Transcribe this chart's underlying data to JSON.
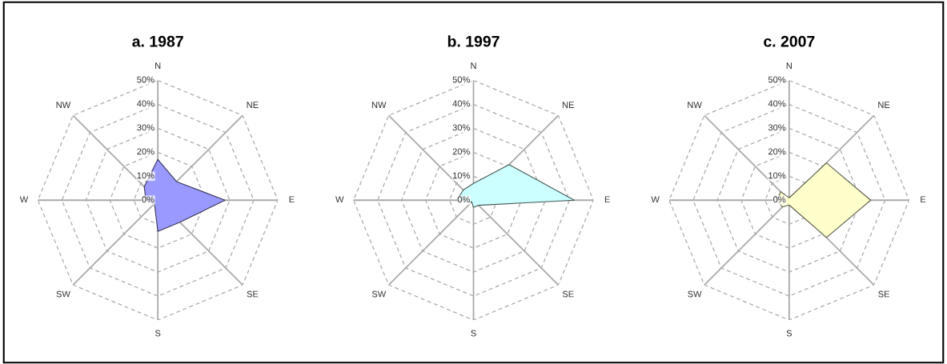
{
  "chart_data": [
    {
      "type": "radar",
      "title": "a. 1987",
      "categories": [
        "N",
        "NE",
        "E",
        "SE",
        "S",
        "SW",
        "W",
        "NW"
      ],
      "ylim": [
        0,
        50
      ],
      "yticks": [
        {
          "value": 0,
          "label": "0%"
        },
        {
          "value": 10,
          "label": "10%"
        },
        {
          "value": 20,
          "label": "20%"
        },
        {
          "value": 30,
          "label": "30%"
        },
        {
          "value": 40,
          "label": "40%"
        },
        {
          "value": 50,
          "label": "50%"
        }
      ],
      "grid": true,
      "series": [
        {
          "color": "#9999ff",
          "values": [
            17,
            11,
            28,
            13,
            13,
            2,
            5,
            8
          ]
        }
      ]
    },
    {
      "type": "radar",
      "title": "b. 1997",
      "categories": [
        "N",
        "NE",
        "E",
        "SE",
        "S",
        "SW",
        "W",
        "NW"
      ],
      "ylim": [
        0,
        50
      ],
      "yticks": [
        {
          "value": 0,
          "label": "0%"
        },
        {
          "value": 10,
          "label": "10%"
        },
        {
          "value": 20,
          "label": "20%"
        },
        {
          "value": 30,
          "label": "30%"
        },
        {
          "value": 40,
          "label": "40%"
        },
        {
          "value": 50,
          "label": "50%"
        }
      ],
      "grid": true,
      "series": [
        {
          "color": "#ccffff",
          "values": [
            7,
            21,
            42,
            3,
            3,
            1,
            7,
            6
          ]
        }
      ]
    },
    {
      "type": "radar",
      "title": "c. 2007",
      "categories": [
        "N",
        "NE",
        "E",
        "SE",
        "S",
        "SW",
        "W",
        "NW"
      ],
      "ylim": [
        0,
        50
      ],
      "yticks": [
        {
          "value": 0,
          "label": "0%"
        },
        {
          "value": 10,
          "label": "10%"
        },
        {
          "value": 20,
          "label": "20%"
        },
        {
          "value": 30,
          "label": "30%"
        },
        {
          "value": 40,
          "label": "40%"
        },
        {
          "value": 50,
          "label": "50%"
        }
      ],
      "grid": true,
      "series": [
        {
          "color": "#ffffcc",
          "values": [
            1,
            22,
            34,
            22,
            2,
            4,
            5,
            5
          ]
        }
      ]
    }
  ]
}
